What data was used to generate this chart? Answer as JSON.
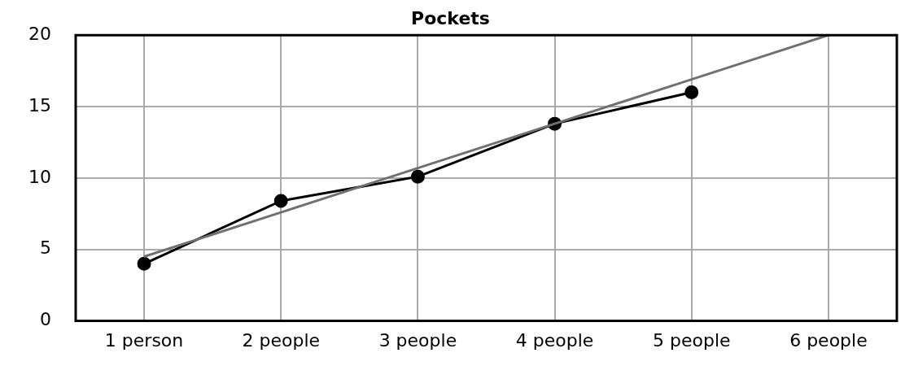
{
  "chart_data": {
    "type": "line",
    "title": "Pockets",
    "categories": [
      "1 person",
      "2 people",
      "3 people",
      "4 people",
      "5 people",
      "6 people"
    ],
    "series": [
      {
        "color": "#707070",
        "values": [
          4.5,
          7.6,
          10.7,
          13.8,
          16.9,
          20.0
        ],
        "marker": "none"
      },
      {
        "color": "#000000",
        "values": [
          4.0,
          8.4,
          10.1,
          13.8,
          16.0,
          null
        ],
        "marker": "circle"
      }
    ],
    "ylim": [
      0,
      20
    ],
    "yticks": [
      0,
      5,
      10,
      15,
      20
    ],
    "grid": true,
    "legend": false
  }
}
